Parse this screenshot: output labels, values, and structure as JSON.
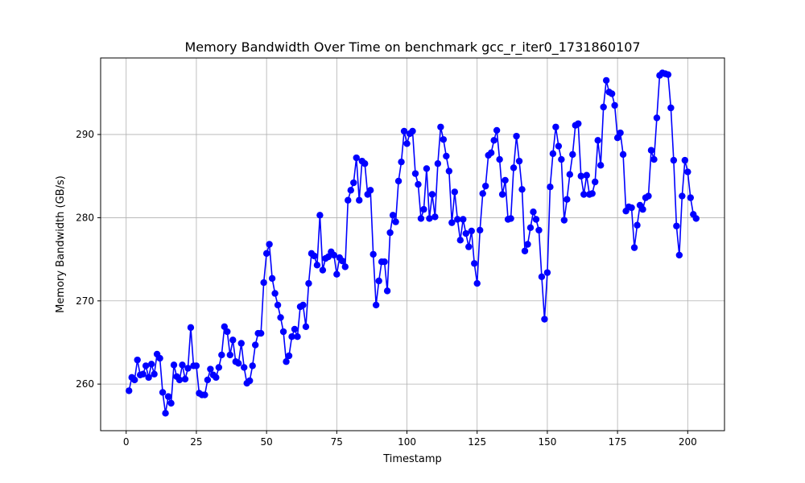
{
  "chart_data": {
    "type": "line",
    "title": "Memory Bandwidth Over Time on benchmark gcc_r_iter0_1731860107",
    "xlabel": "Timestamp",
    "ylabel": "Memory Bandwidth (GB/s)",
    "xlim": [
      -9.1,
      213.1
    ],
    "ylim": [
      254.4,
      299.2
    ],
    "xticks": [
      0,
      25,
      50,
      75,
      100,
      125,
      150,
      175,
      200
    ],
    "yticks": [
      260,
      270,
      280,
      290
    ],
    "grid": true,
    "line_color": "#0000ff",
    "marker": "circle",
    "series": [
      {
        "x": [
          1,
          2,
          3,
          4,
          5,
          6,
          7,
          8,
          9,
          10,
          11,
          12,
          13,
          14,
          15,
          16,
          17,
          18,
          19,
          20,
          21,
          22,
          23,
          24,
          25,
          26,
          27,
          28,
          29,
          30,
          31,
          32,
          33,
          34,
          35,
          36,
          37,
          38,
          39,
          40,
          41,
          42,
          43,
          44,
          45,
          46,
          47,
          48,
          49,
          50,
          51,
          52,
          53,
          54,
          55,
          56,
          57,
          58,
          59,
          60,
          61,
          62,
          63,
          64,
          65,
          66,
          67,
          68,
          69,
          70,
          71,
          72,
          73,
          74,
          75,
          76,
          77,
          78,
          79,
          80,
          81,
          82,
          83,
          84,
          85,
          86,
          87,
          88,
          89,
          90,
          91,
          92,
          93,
          94,
          95,
          96,
          97,
          98,
          99,
          100,
          101,
          102,
          103,
          104,
          105,
          106,
          107,
          108,
          109,
          110,
          111,
          112,
          113,
          114,
          115,
          116,
          117,
          118,
          119,
          120,
          121,
          122,
          123,
          124,
          125,
          126,
          127,
          128,
          129,
          130,
          131,
          132,
          133,
          134,
          135,
          136,
          137,
          138,
          139,
          140,
          141,
          142,
          143,
          144,
          145,
          146,
          147,
          148,
          149,
          150,
          151,
          152,
          153,
          154,
          155,
          156,
          157,
          158,
          159,
          160,
          161,
          162,
          163,
          164,
          165,
          166,
          167,
          168,
          169,
          170,
          171,
          172,
          173,
          174,
          175,
          176,
          177,
          178,
          179,
          180,
          181,
          182,
          183,
          184,
          185,
          186,
          187,
          188,
          189,
          190,
          191,
          192,
          193,
          194,
          195,
          196,
          197,
          198,
          199,
          200,
          201,
          202,
          203
        ],
        "values": [
          259.2,
          260.8,
          260.5,
          262.9,
          261.1,
          261.2,
          262.2,
          260.8,
          262.4,
          261.2,
          263.6,
          263.1,
          259.0,
          256.5,
          258.5,
          257.7,
          262.3,
          260.9,
          260.5,
          262.3,
          260.6,
          261.9,
          266.8,
          262.2,
          262.2,
          258.9,
          258.7,
          258.7,
          260.5,
          261.8,
          261.1,
          260.8,
          262.0,
          263.5,
          266.9,
          266.3,
          263.5,
          265.3,
          262.7,
          262.5,
          264.9,
          262.0,
          260.1,
          260.4,
          262.2,
          264.7,
          266.1,
          266.1,
          272.2,
          275.7,
          276.8,
          272.7,
          270.9,
          269.5,
          268.0,
          266.3,
          262.7,
          263.4,
          265.7,
          266.6,
          265.7,
          269.3,
          269.5,
          266.9,
          272.1,
          275.7,
          275.4,
          274.3,
          280.3,
          273.7,
          275.1,
          275.3,
          275.9,
          275.5,
          273.2,
          275.2,
          274.8,
          274.1,
          282.1,
          283.3,
          284.2,
          287.2,
          282.1,
          286.8,
          286.5,
          282.8,
          283.3,
          275.6,
          269.5,
          272.4,
          274.7,
          274.7,
          271.2,
          278.2,
          280.3,
          279.5,
          284.4,
          286.7,
          290.4,
          288.9,
          290.1,
          290.4,
          285.3,
          284.0,
          279.9,
          281.0,
          285.9,
          279.9,
          282.8,
          280.1,
          286.5,
          290.9,
          289.4,
          287.4,
          285.6,
          279.4,
          283.1,
          279.8,
          277.3,
          279.8,
          278.1,
          276.5,
          278.4,
          274.5,
          272.1,
          278.5,
          282.9,
          283.8,
          287.5,
          287.8,
          289.3,
          290.5,
          287.0,
          282.8,
          284.5,
          279.8,
          279.9,
          286.0,
          289.8,
          286.8,
          283.4,
          276.0,
          276.8,
          278.8,
          280.7,
          279.8,
          278.5,
          272.9,
          267.8,
          273.4,
          283.7,
          287.7,
          290.9,
          288.6,
          287.0,
          279.7,
          282.2,
          285.2,
          287.6,
          291.1,
          291.3,
          285.0,
          282.8,
          285.1,
          282.8,
          282.9,
          284.3,
          289.3,
          286.3,
          293.3,
          296.5,
          295.1,
          294.9,
          293.5,
          289.6,
          290.2,
          287.6,
          280.8,
          281.3,
          281.2,
          276.4,
          279.1,
          281.5,
          281.0,
          282.4,
          282.6,
          288.1,
          287.0,
          292.0,
          297.1,
          297.4,
          297.3,
          297.2,
          293.2,
          286.9,
          279.0,
          275.5,
          282.6,
          286.9,
          285.5,
          282.4,
          280.4,
          279.9
        ]
      }
    ]
  }
}
